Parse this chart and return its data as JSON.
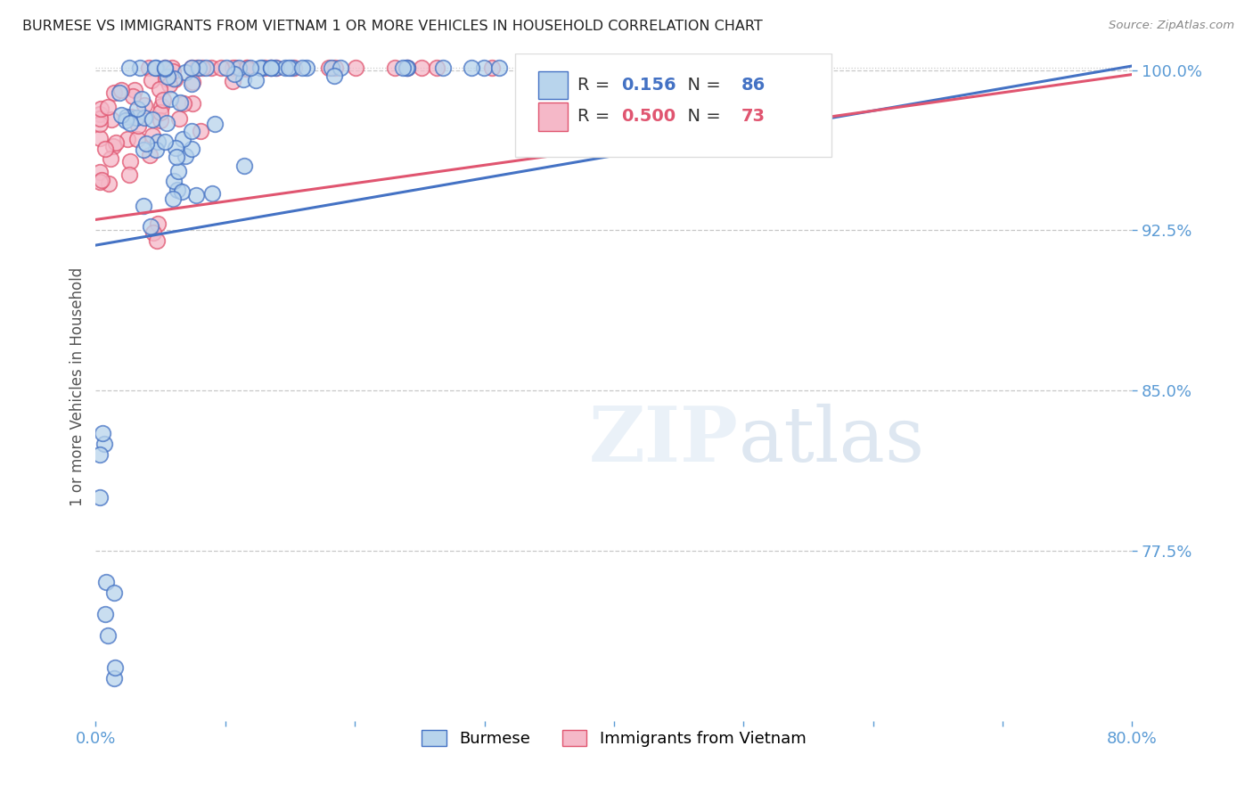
{
  "title": "BURMESE VS IMMIGRANTS FROM VIETNAM 1 OR MORE VEHICLES IN HOUSEHOLD CORRELATION CHART",
  "source": "Source: ZipAtlas.com",
  "ylabel": "1 or more Vehicles in Household",
  "legend_label1": "Burmese",
  "legend_label2": "Immigrants from Vietnam",
  "R1": 0.156,
  "N1": 86,
  "R2": 0.5,
  "N2": 73,
  "color1": "#b8d4ec",
  "color2": "#f5b8c8",
  "line_color1": "#4472c4",
  "line_color2": "#e05570",
  "axis_color": "#5b9bd5",
  "xlim": [
    0.0,
    0.8
  ],
  "ylim": [
    0.695,
    1.008
  ],
  "yticks": [
    0.775,
    0.85,
    0.925,
    1.0
  ],
  "yticklabels": [
    "77.5%",
    "85.0%",
    "92.5%",
    "100.0%"
  ],
  "blue_line_x": [
    0.0,
    0.8
  ],
  "blue_line_y": [
    0.918,
    1.002
  ],
  "pink_line_x": [
    0.0,
    0.8
  ],
  "pink_line_y": [
    0.93,
    0.998
  ]
}
